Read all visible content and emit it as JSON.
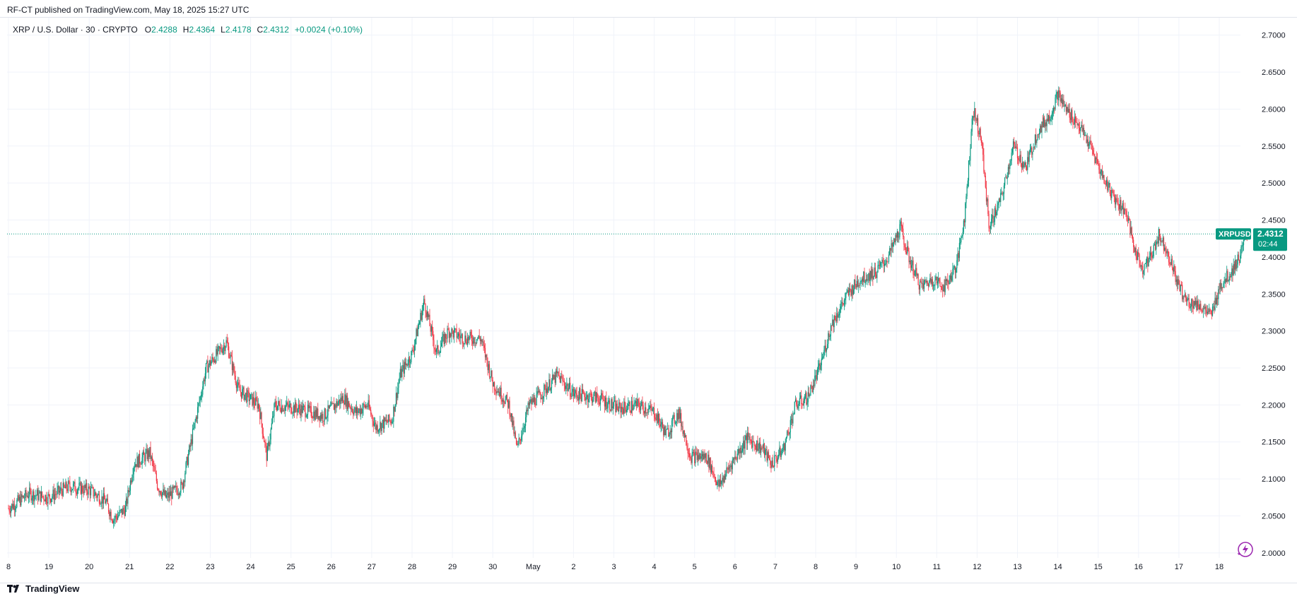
{
  "header": {
    "publish_text": "RF-CT published on TradingView.com, May 18, 2025 15:27 UTC"
  },
  "legend": {
    "symbol": "XRP / U.S. Dollar · 30 · CRYPTO",
    "open_label": "O",
    "open": "2.4288",
    "high_label": "H",
    "high": "2.4364",
    "low_label": "L",
    "low": "2.4178",
    "close_label": "C",
    "close": "2.4312",
    "change": "+0.0024 (+0.10%)"
  },
  "price_tag": {
    "symbol": "XRPUSD",
    "price": "2.4312",
    "countdown": "02:44"
  },
  "footer": {
    "brand": "TradingView"
  },
  "colors": {
    "up": "#089981",
    "down": "#f23645",
    "grid": "#f0f3fa",
    "text": "#131722",
    "tag_bg": "#089981"
  },
  "chart_data": {
    "type": "candlestick",
    "ylim": [
      1.975,
      2.715
    ],
    "y_ticks": [
      "2.7000",
      "2.6500",
      "2.6000",
      "2.5500",
      "2.5000",
      "2.4500",
      "2.4000",
      "2.3500",
      "2.3000",
      "2.2500",
      "2.2000",
      "2.1500",
      "2.1000",
      "2.0500",
      "2.0000"
    ],
    "x_labels": [
      "8",
      "19",
      "20",
      "21",
      "22",
      "23",
      "24",
      "25",
      "26",
      "27",
      "28",
      "29",
      "30",
      "May",
      "2",
      "3",
      "4",
      "5",
      "6",
      "7",
      "8",
      "9",
      "10",
      "11",
      "12",
      "13",
      "14",
      "15",
      "16",
      "17",
      "18"
    ],
    "last_price": 2.4312,
    "close_path": [
      [
        0,
        2.06
      ],
      [
        0.5,
        2.08
      ],
      [
        1.0,
        2.075
      ],
      [
        1.5,
        2.09
      ],
      [
        2.0,
        2.085
      ],
      [
        2.4,
        2.07
      ],
      [
        2.6,
        2.045
      ],
      [
        2.9,
        2.06
      ],
      [
        3.1,
        2.12
      ],
      [
        3.5,
        2.135
      ],
      [
        3.7,
        2.09
      ],
      [
        3.9,
        2.075
      ],
      [
        4.3,
        2.09
      ],
      [
        4.6,
        2.17
      ],
      [
        4.9,
        2.25
      ],
      [
        5.4,
        2.285
      ],
      [
        5.7,
        2.22
      ],
      [
        6.2,
        2.2
      ],
      [
        6.4,
        2.13
      ],
      [
        6.6,
        2.2
      ],
      [
        7.2,
        2.195
      ],
      [
        7.8,
        2.185
      ],
      [
        8.3,
        2.21
      ],
      [
        8.6,
        2.19
      ],
      [
        8.9,
        2.2
      ],
      [
        9.1,
        2.17
      ],
      [
        9.5,
        2.18
      ],
      [
        9.7,
        2.24
      ],
      [
        10.0,
        2.27
      ],
      [
        10.3,
        2.34
      ],
      [
        10.6,
        2.27
      ],
      [
        10.9,
        2.3
      ],
      [
        11.3,
        2.29
      ],
      [
        11.7,
        2.29
      ],
      [
        12.0,
        2.23
      ],
      [
        12.4,
        2.2
      ],
      [
        12.6,
        2.14
      ],
      [
        12.9,
        2.2
      ],
      [
        13.2,
        2.215
      ],
      [
        13.6,
        2.24
      ],
      [
        14.0,
        2.215
      ],
      [
        14.6,
        2.21
      ],
      [
        15.1,
        2.195
      ],
      [
        15.6,
        2.2
      ],
      [
        16.0,
        2.19
      ],
      [
        16.3,
        2.16
      ],
      [
        16.6,
        2.19
      ],
      [
        16.9,
        2.13
      ],
      [
        17.3,
        2.13
      ],
      [
        17.6,
        2.09
      ],
      [
        17.9,
        2.12
      ],
      [
        18.3,
        2.155
      ],
      [
        18.7,
        2.14
      ],
      [
        18.9,
        2.12
      ],
      [
        19.2,
        2.14
      ],
      [
        19.5,
        2.2
      ],
      [
        19.8,
        2.21
      ],
      [
        20.1,
        2.25
      ],
      [
        20.4,
        2.31
      ],
      [
        20.8,
        2.35
      ],
      [
        21.1,
        2.37
      ],
      [
        21.5,
        2.38
      ],
      [
        21.8,
        2.4
      ],
      [
        22.1,
        2.44
      ],
      [
        22.3,
        2.4
      ],
      [
        22.6,
        2.36
      ],
      [
        22.9,
        2.37
      ],
      [
        23.2,
        2.36
      ],
      [
        23.5,
        2.39
      ],
      [
        23.7,
        2.46
      ],
      [
        23.9,
        2.6
      ],
      [
        24.1,
        2.56
      ],
      [
        24.3,
        2.44
      ],
      [
        24.6,
        2.48
      ],
      [
        24.9,
        2.55
      ],
      [
        25.2,
        2.52
      ],
      [
        25.5,
        2.57
      ],
      [
        25.8,
        2.59
      ],
      [
        26.0,
        2.62
      ],
      [
        26.2,
        2.6
      ],
      [
        26.5,
        2.58
      ],
      [
        26.8,
        2.55
      ],
      [
        27.1,
        2.51
      ],
      [
        27.4,
        2.48
      ],
      [
        27.7,
        2.46
      ],
      [
        27.9,
        2.41
      ],
      [
        28.1,
        2.385
      ],
      [
        28.3,
        2.4
      ],
      [
        28.5,
        2.43
      ],
      [
        28.7,
        2.41
      ],
      [
        29.0,
        2.36
      ],
      [
        29.2,
        2.34
      ],
      [
        29.5,
        2.335
      ],
      [
        29.8,
        2.32
      ],
      [
        30.0,
        2.36
      ],
      [
        30.3,
        2.38
      ],
      [
        30.5,
        2.4
      ],
      [
        30.7,
        2.4312
      ]
    ]
  }
}
